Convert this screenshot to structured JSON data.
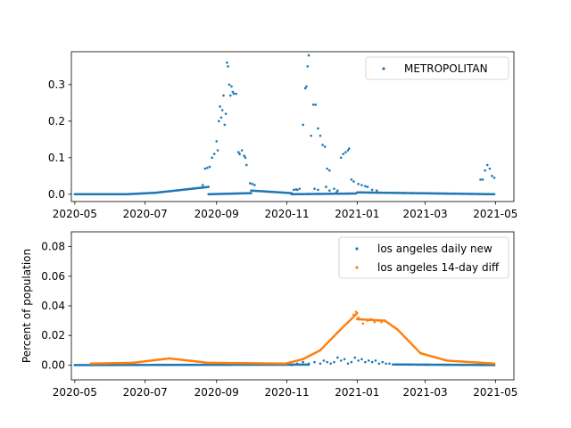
{
  "chart_data": [
    {
      "type": "scatter",
      "x_axis": {
        "kind": "date",
        "range": [
          "2020-04-28",
          "2021-05-17"
        ],
        "ticks": [
          "2020-05-01",
          "2020-07-01",
          "2020-09-01",
          "2020-11-01",
          "2021-01-01",
          "2021-03-01",
          "2021-05-01"
        ],
        "tick_labels": [
          "2020-05",
          "2020-07",
          "2020-09",
          "2020-11",
          "2021-01",
          "2021-03",
          "2021-05"
        ]
      },
      "y_axis": {
        "range": [
          -0.02,
          0.39
        ],
        "ticks": [
          0.0,
          0.1,
          0.2,
          0.3
        ],
        "tick_labels": [
          "0.0",
          "0.1",
          "0.2",
          "0.3"
        ]
      },
      "xlabel": "",
      "ylabel": "",
      "legend": "top-right",
      "grid": false,
      "series": [
        {
          "name": "METROPOLITAN",
          "color": "#1f77b4",
          "baseline_segments": [
            {
              "start": "2020-05-01",
              "end": "2020-06-15",
              "value_start": 0.0,
              "value_end": 0.0
            },
            {
              "start": "2020-06-15",
              "end": "2020-07-10",
              "value_start": 0.0,
              "value_end": 0.004
            },
            {
              "start": "2020-07-10",
              "end": "2020-08-25",
              "value_start": 0.004,
              "value_end": 0.02
            },
            {
              "start": "2020-08-25",
              "end": "2020-10-01",
              "value_start": 0.0,
              "value_end": 0.003
            },
            {
              "start": "2020-10-01",
              "end": "2020-11-05",
              "value_start": 0.01,
              "value_end": 0.003
            },
            {
              "start": "2020-11-05",
              "end": "2020-12-31",
              "value_start": 0.0,
              "value_end": 0.002
            },
            {
              "start": "2021-01-01",
              "end": "2021-04-30",
              "value_start": 0.005,
              "value_end": 0.0
            }
          ],
          "points": [
            [
              "2020-08-20",
              0.025
            ],
            [
              "2020-08-22",
              0.07
            ],
            [
              "2020-08-24",
              0.072
            ],
            [
              "2020-08-26",
              0.075
            ],
            [
              "2020-08-28",
              0.1
            ],
            [
              "2020-08-30",
              0.11
            ],
            [
              "2020-09-01",
              0.145
            ],
            [
              "2020-09-02",
              0.12
            ],
            [
              "2020-09-03",
              0.2
            ],
            [
              "2020-09-04",
              0.24
            ],
            [
              "2020-09-05",
              0.21
            ],
            [
              "2020-09-06",
              0.23
            ],
            [
              "2020-09-07",
              0.27
            ],
            [
              "2020-09-08",
              0.19
            ],
            [
              "2020-09-09",
              0.22
            ],
            [
              "2020-09-10",
              0.36
            ],
            [
              "2020-09-11",
              0.35
            ],
            [
              "2020-09-12",
              0.3
            ],
            [
              "2020-09-13",
              0.27
            ],
            [
              "2020-09-14",
              0.295
            ],
            [
              "2020-09-15",
              0.28
            ],
            [
              "2020-09-16",
              0.275
            ],
            [
              "2020-09-18",
              0.275
            ],
            [
              "2020-09-20",
              0.115
            ],
            [
              "2020-09-21",
              0.11
            ],
            [
              "2020-09-23",
              0.12
            ],
            [
              "2020-09-25",
              0.105
            ],
            [
              "2020-09-26",
              0.1
            ],
            [
              "2020-09-27",
              0.08
            ],
            [
              "2020-09-30",
              0.03
            ],
            [
              "2020-10-02",
              0.028
            ],
            [
              "2020-10-04",
              0.025
            ],
            [
              "2020-11-10",
              0.012
            ],
            [
              "2020-11-12",
              0.015
            ],
            [
              "2020-11-15",
              0.19
            ],
            [
              "2020-11-17",
              0.29
            ],
            [
              "2020-11-18",
              0.295
            ],
            [
              "2020-11-19",
              0.35
            ],
            [
              "2020-11-20",
              0.38
            ],
            [
              "2020-11-22",
              0.16
            ],
            [
              "2020-11-24",
              0.245
            ],
            [
              "2020-11-26",
              0.245
            ],
            [
              "2020-11-28",
              0.18
            ],
            [
              "2020-11-30",
              0.16
            ],
            [
              "2020-12-02",
              0.135
            ],
            [
              "2020-12-04",
              0.13
            ],
            [
              "2020-12-06",
              0.07
            ],
            [
              "2020-12-08",
              0.065
            ],
            [
              "2020-12-12",
              0.015
            ],
            [
              "2020-12-18",
              0.1
            ],
            [
              "2020-12-20",
              0.11
            ],
            [
              "2020-12-22",
              0.115
            ],
            [
              "2020-12-24",
              0.12
            ],
            [
              "2020-12-25",
              0.125
            ],
            [
              "2020-12-27",
              0.04
            ],
            [
              "2020-12-29",
              0.035
            ],
            [
              "2021-01-02",
              0.028
            ],
            [
              "2021-01-05",
              0.025
            ],
            [
              "2021-01-08",
              0.022
            ],
            [
              "2021-01-10",
              0.02
            ],
            [
              "2021-04-18",
              0.04
            ],
            [
              "2021-04-20",
              0.04
            ],
            [
              "2021-04-22",
              0.065
            ],
            [
              "2021-04-24",
              0.08
            ],
            [
              "2021-04-26",
              0.07
            ],
            [
              "2021-04-28",
              0.05
            ],
            [
              "2021-04-30",
              0.045
            ],
            [
              "2020-11-07",
              0.012
            ],
            [
              "2020-11-09",
              0.013
            ],
            [
              "2020-11-25",
              0.015
            ],
            [
              "2020-11-28",
              0.012
            ],
            [
              "2020-12-05",
              0.02
            ],
            [
              "2020-12-08",
              0.01
            ],
            [
              "2020-12-14",
              0.005
            ],
            [
              "2020-12-15",
              0.01
            ],
            [
              "2021-01-14",
              0.012
            ],
            [
              "2021-01-18",
              0.01
            ]
          ]
        }
      ]
    },
    {
      "type": "scatter",
      "x_axis": {
        "kind": "date",
        "range": [
          "2020-04-28",
          "2021-05-17"
        ],
        "ticks": [
          "2020-05-01",
          "2020-07-01",
          "2020-09-01",
          "2020-11-01",
          "2021-01-01",
          "2021-03-01",
          "2021-05-01"
        ],
        "tick_labels": [
          "2020-05",
          "2020-07",
          "2020-09",
          "2020-11",
          "2021-01",
          "2021-03",
          "2021-05"
        ]
      },
      "y_axis": {
        "range": [
          -0.01,
          0.09
        ],
        "ticks": [
          0.0,
          0.02,
          0.04,
          0.06,
          0.08
        ],
        "tick_labels": [
          "0.00",
          "0.02",
          "0.04",
          "0.06",
          "0.08"
        ]
      },
      "xlabel": "",
      "ylabel": "Percent of population",
      "legend": "top-right",
      "grid": false,
      "series": [
        {
          "name": "los angeles daily new",
          "color": "#1f77b4",
          "baseline_segments": [
            {
              "start": "2020-05-01",
              "end": "2020-11-20",
              "value_start": 0.0,
              "value_end": 0.0003
            },
            {
              "start": "2021-02-01",
              "end": "2021-04-30",
              "value_start": 0.0004,
              "value_end": 0.0
            }
          ],
          "points": [
            [
              "2020-11-01",
              0.001
            ],
            [
              "2020-11-05",
              0.0
            ],
            [
              "2020-11-10",
              0.001
            ],
            [
              "2020-11-15",
              0.002
            ],
            [
              "2020-11-20",
              0.001
            ],
            [
              "2020-11-25",
              0.002
            ],
            [
              "2020-11-30",
              0.001
            ],
            [
              "2020-12-03",
              0.003
            ],
            [
              "2020-12-06",
              0.002
            ],
            [
              "2020-12-09",
              0.001
            ],
            [
              "2020-12-12",
              0.002
            ],
            [
              "2020-12-15",
              0.005
            ],
            [
              "2020-12-18",
              0.003
            ],
            [
              "2020-12-21",
              0.004
            ],
            [
              "2020-12-24",
              0.001
            ],
            [
              "2020-12-27",
              0.002
            ],
            [
              "2020-12-30",
              0.005
            ],
            [
              "2021-01-02",
              0.003
            ],
            [
              "2021-01-05",
              0.004
            ],
            [
              "2021-01-08",
              0.002
            ],
            [
              "2021-01-11",
              0.003
            ],
            [
              "2021-01-14",
              0.002
            ],
            [
              "2021-01-17",
              0.003
            ],
            [
              "2021-01-20",
              0.001
            ],
            [
              "2021-01-23",
              0.002
            ],
            [
              "2021-01-26",
              0.001
            ],
            [
              "2021-01-29",
              0.001
            ]
          ]
        },
        {
          "name": "los angeles 14-day diff",
          "color": "#ff7f0e",
          "baseline_segments": [
            {
              "start": "2020-05-15",
              "end": "2020-06-20",
              "value_start": 0.001,
              "value_end": 0.0015
            },
            {
              "start": "2020-06-20",
              "end": "2020-07-22",
              "value_start": 0.0015,
              "value_end": 0.0045
            },
            {
              "start": "2020-07-22",
              "end": "2020-08-25",
              "value_start": 0.0045,
              "value_end": 0.0015
            },
            {
              "start": "2020-08-25",
              "end": "2020-10-31",
              "value_start": 0.0015,
              "value_end": 0.001
            },
            {
              "start": "2020-10-31",
              "end": "2020-11-15",
              "value_start": 0.001,
              "value_end": 0.004
            },
            {
              "start": "2020-11-15",
              "end": "2020-11-30",
              "value_start": 0.004,
              "value_end": 0.01
            },
            {
              "start": "2020-11-30",
              "end": "2020-12-15",
              "value_start": 0.01,
              "value_end": 0.022
            },
            {
              "start": "2020-12-15",
              "end": "2021-01-01",
              "value_start": 0.022,
              "value_end": 0.035
            },
            {
              "start": "2021-01-01",
              "end": "2021-01-25",
              "value_start": 0.031,
              "value_end": 0.03
            },
            {
              "start": "2021-01-25",
              "end": "2021-02-05",
              "value_start": 0.03,
              "value_end": 0.024
            },
            {
              "start": "2021-02-05",
              "end": "2021-02-25",
              "value_start": 0.024,
              "value_end": 0.008
            },
            {
              "start": "2021-02-25",
              "end": "2021-03-20",
              "value_start": 0.008,
              "value_end": 0.003
            },
            {
              "start": "2021-03-20",
              "end": "2021-04-30",
              "value_start": 0.003,
              "value_end": 0.001
            }
          ],
          "points": [
            [
              "2020-12-29",
              0.034
            ],
            [
              "2020-12-31",
              0.036
            ],
            [
              "2021-01-02",
              0.032
            ],
            [
              "2021-01-06",
              0.028
            ],
            [
              "2021-01-10",
              0.03
            ],
            [
              "2021-01-13",
              0.031
            ],
            [
              "2021-01-16",
              0.029
            ],
            [
              "2021-01-19",
              0.03
            ],
            [
              "2021-01-22",
              0.029
            ]
          ]
        }
      ]
    }
  ]
}
